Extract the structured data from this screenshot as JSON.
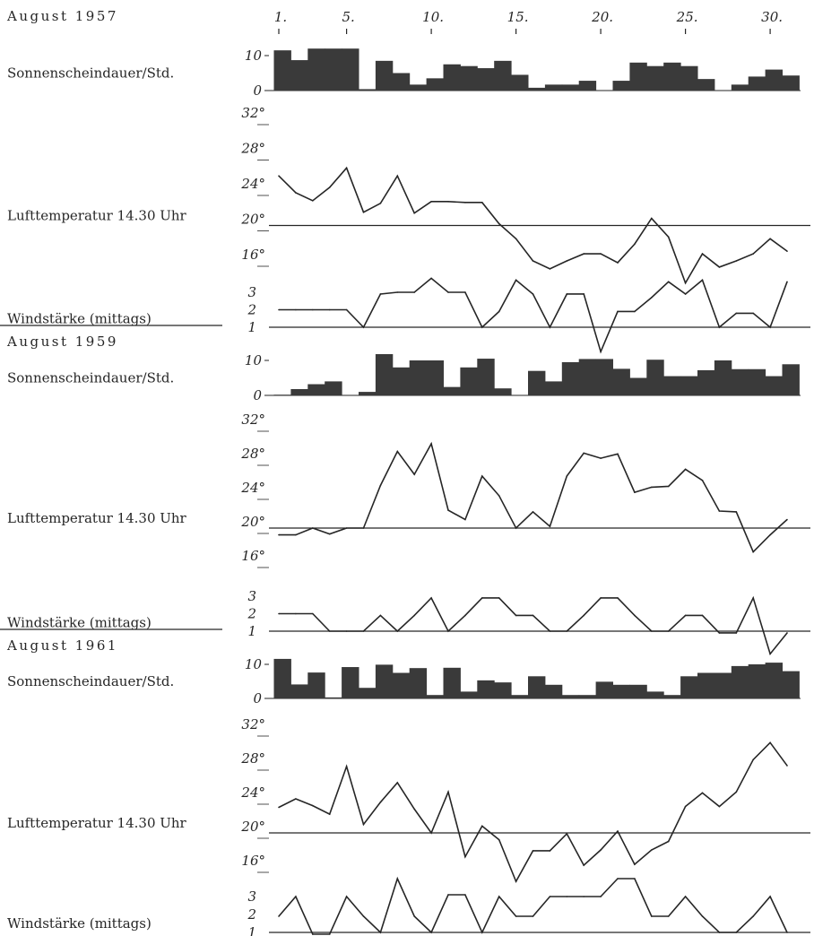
{
  "day_axis": {
    "labels": [
      "1.",
      "5.",
      "10.",
      "15.",
      "20.",
      "25.",
      "30."
    ],
    "days": [
      1,
      5,
      10,
      15,
      20,
      25,
      30
    ]
  },
  "row_labels": {
    "sun": "Sonnenscheindauer/Std.",
    "temp": "Lufttemperatur 14.30 Uhr",
    "wind": "Windstärke (mittags)"
  },
  "chart_data": [
    {
      "year_label": "August 1957",
      "panels": [
        {
          "type": "bar",
          "ylabel": "Sonnenscheindauer/Std.",
          "x": [
            1,
            2,
            3,
            4,
            5,
            6,
            7,
            8,
            9,
            10,
            11,
            12,
            13,
            14,
            15,
            16,
            17,
            18,
            19,
            20,
            21,
            22,
            23,
            24,
            25,
            26,
            27,
            28,
            29,
            30,
            31
          ],
          "values": [
            11.5,
            8.7,
            12,
            12,
            12,
            0.4,
            8.5,
            5,
            1.7,
            3.5,
            7.5,
            7,
            6.4,
            8.5,
            4.5,
            0.8,
            1.7,
            1.7,
            2.8,
            0,
            2.8,
            8,
            7,
            8,
            7,
            3.3,
            0,
            1.7,
            4,
            6,
            4.3
          ],
          "ticks": [
            "10",
            "0"
          ],
          "tick_values": [
            10,
            0
          ],
          "ylim": [
            0,
            12
          ]
        },
        {
          "type": "line",
          "ylabel": "Lufttemperatur 14.30 Uhr",
          "x": [
            1,
            2,
            3,
            4,
            5,
            6,
            7,
            8,
            9,
            10,
            11,
            12,
            13,
            14,
            15,
            16,
            17,
            18,
            19,
            20,
            21,
            22,
            23,
            24,
            25,
            26,
            27,
            28,
            29,
            30,
            31
          ],
          "values": [
            25.6,
            23.7,
            22.8,
            24.3,
            26.5,
            21.5,
            22.5,
            25.6,
            21.4,
            22.7,
            22.7,
            22.6,
            22.6,
            20.2,
            18.5,
            16,
            15.1,
            16,
            16.8,
            16.8,
            15.8,
            17.9,
            20.8,
            18.7,
            13.5,
            16.8,
            15.3,
            16,
            16.8,
            18.5,
            17.1
          ],
          "reference": 20,
          "ticks": [
            "32°",
            "28°",
            "24°",
            "20°",
            "16°"
          ],
          "tick_values": [
            32,
            28,
            24,
            20,
            16
          ],
          "ylim": [
            14,
            32
          ]
        },
        {
          "type": "line",
          "ylabel": "Windstärke (mittags)",
          "x": [
            1,
            2,
            3,
            4,
            5,
            6,
            7,
            8,
            9,
            10,
            11,
            12,
            13,
            14,
            15,
            16,
            17,
            18,
            19,
            20,
            21,
            22,
            23,
            24,
            25,
            26,
            27,
            28,
            29,
            30,
            31
          ],
          "values": [
            2,
            2,
            2,
            2,
            2,
            1,
            2.9,
            3,
            3,
            3.8,
            3,
            3,
            1,
            1.9,
            3.7,
            2.9,
            1,
            2.9,
            2.9,
            -0.4,
            1.9,
            1.9,
            2.7,
            3.6,
            2.9,
            3.7,
            1,
            1.8,
            1.8,
            1,
            3.6
          ],
          "reference": 1,
          "ticks": [
            "3",
            "2",
            "1"
          ],
          "tick_values": [
            3,
            2,
            1
          ],
          "ylim": [
            0,
            4
          ]
        }
      ]
    },
    {
      "year_label": "August 1959",
      "panels": [
        {
          "type": "bar",
          "ylabel": "Sonnenscheindauer/Std.",
          "x": [
            1,
            2,
            3,
            4,
            5,
            6,
            7,
            8,
            9,
            10,
            11,
            12,
            13,
            14,
            15,
            16,
            17,
            18,
            19,
            20,
            21,
            22,
            23,
            24,
            25,
            26,
            27,
            28,
            29,
            30,
            31
          ],
          "values": [
            0.2,
            1.8,
            3.2,
            4,
            0,
            1,
            11.8,
            8,
            10,
            10,
            2.4,
            8,
            10.5,
            2,
            0,
            7,
            4,
            9.5,
            10.4,
            10.4,
            7.6,
            5,
            10.2,
            5.5,
            5.5,
            7.2,
            10,
            7.5,
            7.5,
            5.5,
            8.9
          ],
          "ticks": [
            "10",
            "0"
          ],
          "tick_values": [
            10,
            0
          ],
          "ylim": [
            0,
            12
          ]
        },
        {
          "type": "line",
          "ylabel": "Lufttemperatur 14.30 Uhr",
          "x": [
            1,
            2,
            3,
            4,
            5,
            6,
            7,
            8,
            9,
            10,
            11,
            12,
            13,
            14,
            15,
            16,
            17,
            18,
            19,
            20,
            21,
            22,
            23,
            24,
            25,
            26,
            27,
            28,
            29,
            30,
            31
          ],
          "values": [
            19.2,
            19.2,
            20,
            19.3,
            20,
            20,
            25,
            29,
            26.3,
            29.9,
            22.1,
            21,
            26.1,
            23.8,
            20,
            21.9,
            20.2,
            26.1,
            28.8,
            28.2,
            28.7,
            24.2,
            24.8,
            24.9,
            26.9,
            25.6,
            22,
            21.9,
            17.2,
            19.2,
            21
          ],
          "reference": 20,
          "ticks": [
            "32°",
            "28°",
            "24°",
            "20°",
            "16°"
          ],
          "tick_values": [
            32,
            28,
            24,
            20,
            16
          ],
          "ylim": [
            14,
            32
          ]
        },
        {
          "type": "line",
          "ylabel": "Windstärke (mittags)",
          "x": [
            1,
            2,
            3,
            4,
            5,
            6,
            7,
            8,
            9,
            10,
            11,
            12,
            13,
            14,
            15,
            16,
            17,
            18,
            19,
            20,
            21,
            22,
            23,
            24,
            25,
            26,
            27,
            28,
            29,
            30,
            31
          ],
          "values": [
            2,
            2,
            2,
            1,
            1,
            1,
            1.9,
            1,
            1.9,
            2.9,
            1,
            1.9,
            2.9,
            2.9,
            1.9,
            1.9,
            1,
            1,
            1.9,
            2.9,
            2.9,
            1.9,
            1,
            1,
            1.9,
            1.9,
            0.9,
            0.9,
            2.9,
            -0.3,
            0.9
          ],
          "reference": 1,
          "ticks": [
            "3",
            "2",
            "1"
          ],
          "tick_values": [
            3,
            2,
            1
          ],
          "ylim": [
            0,
            4
          ]
        }
      ]
    },
    {
      "year_label": "August 1961",
      "panels": [
        {
          "type": "bar",
          "ylabel": "Sonnenscheindauer/Std.",
          "x": [
            1,
            2,
            3,
            4,
            5,
            6,
            7,
            8,
            9,
            10,
            11,
            12,
            13,
            14,
            15,
            16,
            17,
            18,
            19,
            20,
            21,
            22,
            23,
            24,
            25,
            26,
            27,
            28,
            29,
            30,
            31
          ],
          "values": [
            11.6,
            4.1,
            7.6,
            0.3,
            9.2,
            3.1,
            9.9,
            7.5,
            8.9,
            1,
            9,
            2,
            5.3,
            4.7,
            1,
            6.5,
            4,
            1,
            1,
            4.9,
            4,
            4,
            2,
            1,
            6.5,
            7.5,
            7.5,
            9.5,
            10,
            10.5,
            8
          ],
          "ticks": [
            "10",
            "0"
          ],
          "tick_values": [
            10,
            0
          ],
          "ylim": [
            0,
            12
          ]
        },
        {
          "type": "line",
          "ylabel": "Lufttemperatur 14.30 Uhr",
          "x": [
            1,
            2,
            3,
            4,
            5,
            6,
            7,
            8,
            9,
            10,
            11,
            12,
            13,
            14,
            15,
            16,
            17,
            18,
            19,
            20,
            21,
            22,
            23,
            24,
            25,
            26,
            27,
            28,
            29,
            30,
            31
          ],
          "values": [
            23,
            24,
            23.2,
            22.2,
            27.8,
            21,
            23.6,
            25.9,
            22.8,
            20,
            24.8,
            17.2,
            20.8,
            19.2,
            14.3,
            17.9,
            17.9,
            19.9,
            16.2,
            18,
            20.2,
            16.3,
            18,
            19,
            23.1,
            24.7,
            23.1,
            24.8,
            28.6,
            30.6,
            27.9
          ],
          "reference": 20,
          "ticks": [
            "32°",
            "28°",
            "24°",
            "20°",
            "16°"
          ],
          "tick_values": [
            32,
            28,
            24,
            20,
            16
          ],
          "ylim": [
            14,
            32
          ]
        },
        {
          "type": "line",
          "ylabel": "Windstärke (mittags)",
          "x": [
            1,
            2,
            3,
            4,
            5,
            6,
            7,
            8,
            9,
            10,
            11,
            12,
            13,
            14,
            15,
            16,
            17,
            18,
            19,
            20,
            21,
            22,
            23,
            24,
            25,
            26,
            27,
            28,
            29,
            30,
            31
          ],
          "values": [
            1.9,
            3,
            0.9,
            0.9,
            3,
            1.9,
            1,
            4,
            1.9,
            1,
            3.1,
            3.1,
            1,
            3,
            1.9,
            1.9,
            3,
            3,
            3,
            3,
            4,
            4,
            1.9,
            1.9,
            3,
            1.9,
            1,
            1,
            1.9,
            3,
            1
          ],
          "reference": 1,
          "ticks": [
            "3",
            "2",
            "1"
          ],
          "tick_values": [
            3,
            2,
            1
          ],
          "ylim": [
            0,
            4
          ]
        }
      ]
    }
  ]
}
